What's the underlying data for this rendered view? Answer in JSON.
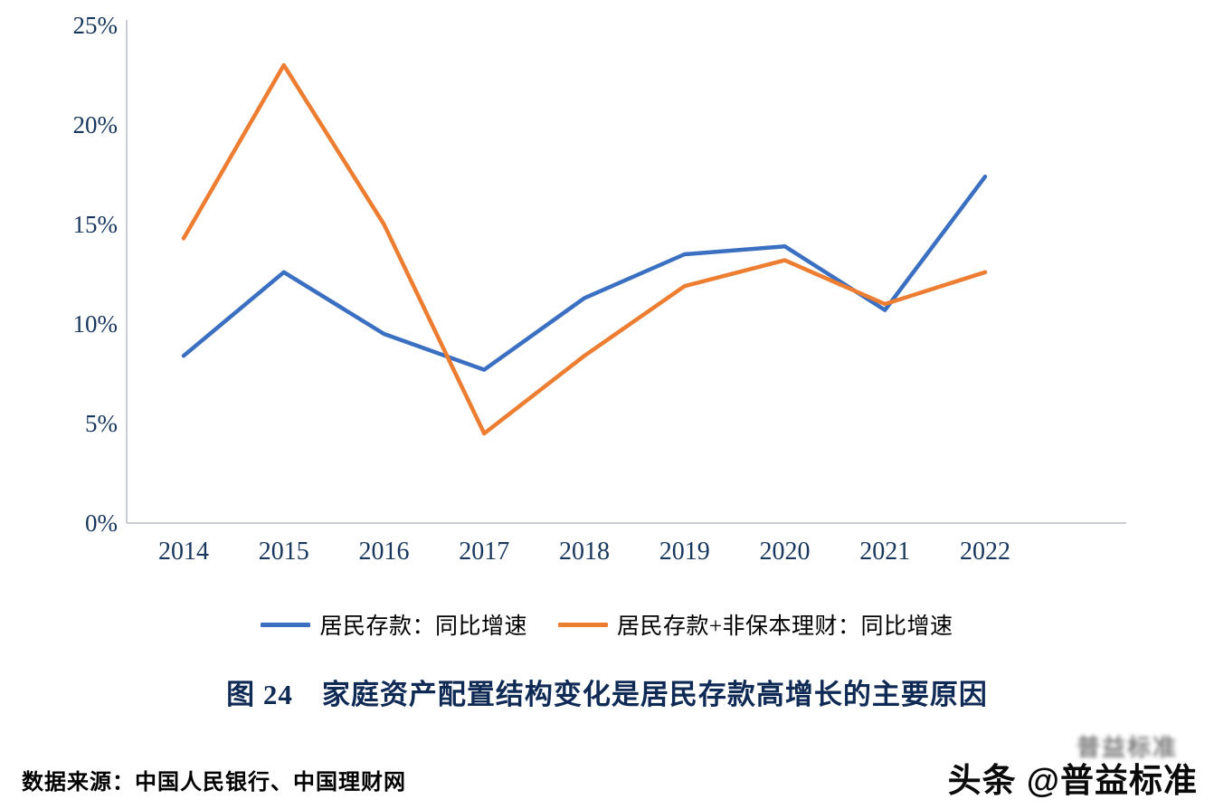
{
  "chart_data": {
    "type": "line",
    "categories": [
      "2014",
      "2015",
      "2016",
      "2017",
      "2018",
      "2019",
      "2020",
      "2021",
      "2022"
    ],
    "series": [
      {
        "name": "居民存款：同比增速",
        "color": "#3a6fc1",
        "values": [
          8.4,
          12.6,
          9.5,
          7.7,
          11.3,
          13.5,
          13.9,
          10.7,
          17.4
        ]
      },
      {
        "name": "居民存款+非保本理财：同比增速",
        "color": "#ed7d31",
        "values": [
          14.3,
          23.0,
          15.0,
          4.5,
          8.4,
          11.9,
          13.2,
          11.0,
          12.6
        ]
      }
    ],
    "ylim": [
      0,
      25
    ],
    "ytick_step": 5,
    "ytick_labels": [
      "0%",
      "5%",
      "10%",
      "15%",
      "20%",
      "25%"
    ],
    "grid": false,
    "legend_position": "bottom",
    "axis_color": "#b7bcc4",
    "tick_label_color": "#17365d",
    "title": "图 24　家庭资产配置结构变化是居民存款高增长的主要原因",
    "xlabel": "",
    "ylabel": ""
  },
  "title": "图 24　家庭资产配置结构变化是居民存款高增长的主要原因",
  "source": "数据来源：中国人民银行、中国理财网",
  "watermark": "头条 @普益标准",
  "watermark_ghost": "普益标准"
}
